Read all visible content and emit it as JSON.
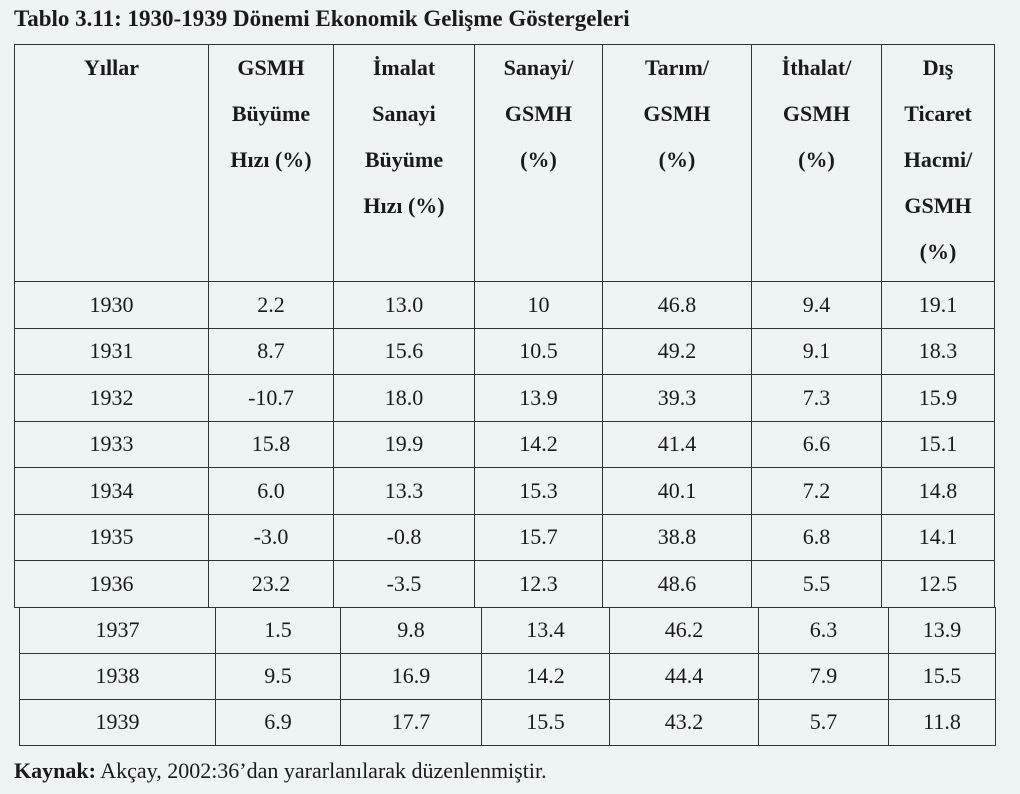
{
  "caption": "Tablo 3.11: 1930-1939 Dönemi Ekonomik Gelişme Göstergeleri",
  "headers": [
    [
      "Yıllar"
    ],
    [
      "GSMH",
      "Büyüme",
      "Hızı (%)"
    ],
    [
      "İmalat",
      "Sanayi",
      "Büyüme",
      "Hızı (%)"
    ],
    [
      "Sanayi/",
      "GSMH",
      "(%)"
    ],
    [
      "Tarım/",
      "GSMH",
      "(%)"
    ],
    [
      "İthalat/",
      "GSMH",
      "(%)"
    ],
    [
      "Dış",
      "Ticaret",
      "Hacmi/",
      "GSMH",
      "(%)"
    ]
  ],
  "rows_part1": [
    [
      "1930",
      "2.2",
      "13.0",
      "10",
      "46.8",
      "9.4",
      "19.1"
    ],
    [
      "1931",
      "8.7",
      "15.6",
      "10.5",
      "49.2",
      "9.1",
      "18.3"
    ],
    [
      "1932",
      "-10.7",
      "18.0",
      "13.9",
      "39.3",
      "7.3",
      "15.9"
    ],
    [
      "1933",
      "15.8",
      "19.9",
      "14.2",
      "41.4",
      "6.6",
      "15.1"
    ],
    [
      "1934",
      "6.0",
      "13.3",
      "15.3",
      "40.1",
      "7.2",
      "14.8"
    ],
    [
      "1935",
      "-3.0",
      "-0.8",
      "15.7",
      "38.8",
      "6.8",
      "14.1"
    ],
    [
      "1936",
      "23.2",
      "-3.5",
      "12.3",
      "48.6",
      "5.5",
      "12.5"
    ]
  ],
  "rows_part2": [
    [
      "1937",
      "1.5",
      "9.8",
      "13.4",
      "46.2",
      "6.3",
      "13.9"
    ],
    [
      "1938",
      "9.5",
      "16.9",
      "14.2",
      "44.4",
      "7.9",
      "15.5"
    ],
    [
      "1939",
      "6.9",
      "17.7",
      "15.5",
      "43.2",
      "5.7",
      "11.8"
    ]
  ],
  "source": {
    "label": "Kaynak:",
    "text": " Akçay, 2002:36’dan yararlanılarak düzenlenmiştir."
  }
}
